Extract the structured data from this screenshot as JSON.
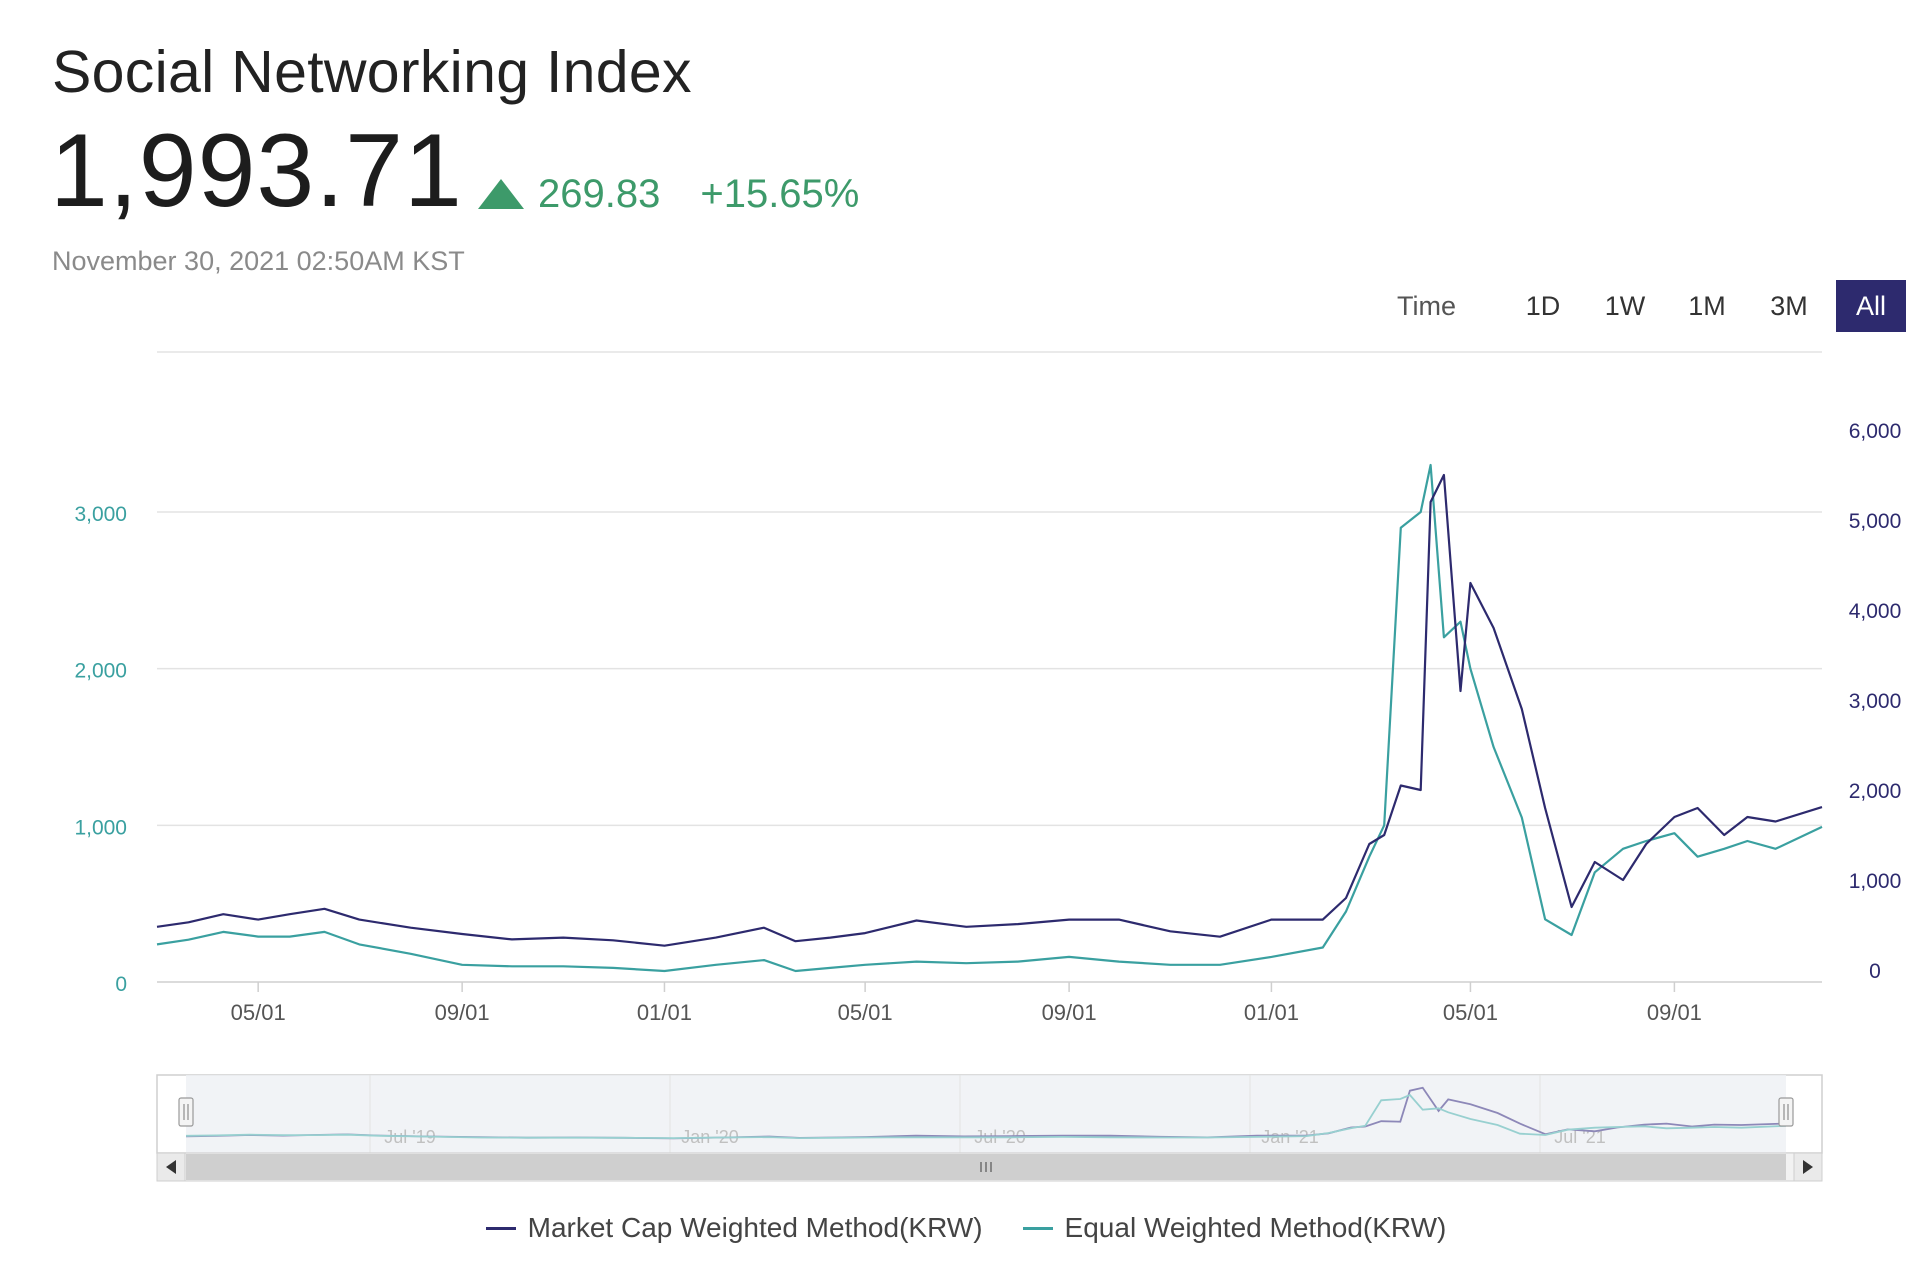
{
  "header": {
    "title": "Social Networking Index",
    "price": "1,993.71",
    "change": "269.83",
    "change_pct": "+15.65%",
    "timestamp": "November 30, 2021 02:50AM KST",
    "change_icon": "triangle-up-icon"
  },
  "colors": {
    "up": "#3d9a6a",
    "market_cap": "#2d2a6e",
    "equal": "#3aa0a0",
    "active_button": "#2d2a6e"
  },
  "range_selector": {
    "label": "Time",
    "buttons": [
      {
        "label": "1D",
        "active": false
      },
      {
        "label": "1W",
        "active": false
      },
      {
        "label": "1M",
        "active": false
      },
      {
        "label": "3M",
        "active": false
      },
      {
        "label": "All",
        "active": true
      }
    ]
  },
  "chart_data": {
    "type": "line",
    "title": "",
    "x_ticks": [
      "05/01",
      "09/01",
      "01/01",
      "05/01",
      "09/01",
      "01/01",
      "05/01",
      "09/01"
    ],
    "y_left": {
      "ticks": [
        "0",
        "1,000",
        "2,000",
        "3,000"
      ],
      "range": [
        0,
        3000
      ]
    },
    "y_right": {
      "ticks": [
        "0",
        "1,000",
        "2,000",
        "3,000",
        "4,000",
        "5,000",
        "6,000"
      ],
      "range": [
        0,
        6000
      ]
    },
    "series": [
      {
        "name": "Market Cap Weighted Method(KRW)",
        "axis": "right",
        "x": [
          "2019-03-01",
          "2019-03-20",
          "2019-04-10",
          "2019-05-01",
          "2019-05-20",
          "2019-06-10",
          "2019-07-01",
          "2019-08-01",
          "2019-09-01",
          "2019-10-01",
          "2019-11-01",
          "2019-12-01",
          "2020-01-01",
          "2020-02-01",
          "2020-03-01",
          "2020-03-20",
          "2020-04-10",
          "2020-05-01",
          "2020-06-01",
          "2020-07-01",
          "2020-08-01",
          "2020-09-01",
          "2020-10-01",
          "2020-11-01",
          "2020-12-01",
          "2021-01-01",
          "2021-02-01",
          "2021-02-15",
          "2021-03-01",
          "2021-03-10",
          "2021-03-20",
          "2021-04-01",
          "2021-04-07",
          "2021-04-15",
          "2021-04-25",
          "2021-05-01",
          "2021-05-15",
          "2021-06-01",
          "2021-06-15",
          "2021-07-01",
          "2021-07-15",
          "2021-08-01",
          "2021-08-15",
          "2021-09-01",
          "2021-09-15",
          "2021-10-01",
          "2021-10-15",
          "2021-11-01",
          "2021-11-29"
        ],
        "values": [
          480,
          530,
          620,
          560,
          620,
          680,
          560,
          470,
          400,
          340,
          360,
          330,
          270,
          360,
          470,
          320,
          360,
          410,
          550,
          480,
          510,
          560,
          560,
          430,
          370,
          560,
          560,
          800,
          1400,
          1500,
          2050,
          2000,
          5200,
          5500,
          3100,
          4300,
          3800,
          2900,
          1800,
          700,
          1200,
          1000,
          1400,
          1700,
          1800,
          1500,
          1700,
          1650,
          1810
        ]
      },
      {
        "name": "Equal Weighted Method(KRW)",
        "axis": "left",
        "x": [
          "2019-03-01",
          "2019-03-20",
          "2019-04-10",
          "2019-05-01",
          "2019-05-20",
          "2019-06-10",
          "2019-07-01",
          "2019-08-01",
          "2019-09-01",
          "2019-10-01",
          "2019-11-01",
          "2019-12-01",
          "2020-01-01",
          "2020-02-01",
          "2020-03-01",
          "2020-03-20",
          "2020-04-10",
          "2020-05-01",
          "2020-06-01",
          "2020-07-01",
          "2020-08-01",
          "2020-09-01",
          "2020-10-01",
          "2020-11-01",
          "2020-12-01",
          "2021-01-01",
          "2021-02-01",
          "2021-02-15",
          "2021-03-01",
          "2021-03-10",
          "2021-03-20",
          "2021-04-01",
          "2021-04-07",
          "2021-04-15",
          "2021-04-25",
          "2021-05-01",
          "2021-05-15",
          "2021-06-01",
          "2021-06-15",
          "2021-07-01",
          "2021-07-15",
          "2021-08-01",
          "2021-08-15",
          "2021-09-01",
          "2021-09-15",
          "2021-10-01",
          "2021-10-15",
          "2021-11-01",
          "2021-11-29"
        ],
        "values": [
          240,
          270,
          320,
          290,
          290,
          320,
          240,
          180,
          110,
          100,
          100,
          90,
          70,
          110,
          140,
          70,
          90,
          110,
          130,
          120,
          130,
          160,
          130,
          110,
          110,
          160,
          220,
          450,
          800,
          1000,
          2900,
          3000,
          3300,
          2200,
          2300,
          2000,
          1500,
          1050,
          400,
          300,
          700,
          850,
          900,
          950,
          800,
          850,
          900,
          850,
          990
        ]
      }
    ]
  },
  "navigator": {
    "labels": [
      "Jul '19",
      "Jan '20",
      "Jul '20",
      "Jan '21",
      "Jul '21"
    ]
  },
  "legend": [
    {
      "label": "Market Cap Weighted Method(KRW)",
      "color": "#2d2a6e"
    },
    {
      "label": "Equal Weighted Method(KRW)",
      "color": "#3aa0a0"
    }
  ]
}
